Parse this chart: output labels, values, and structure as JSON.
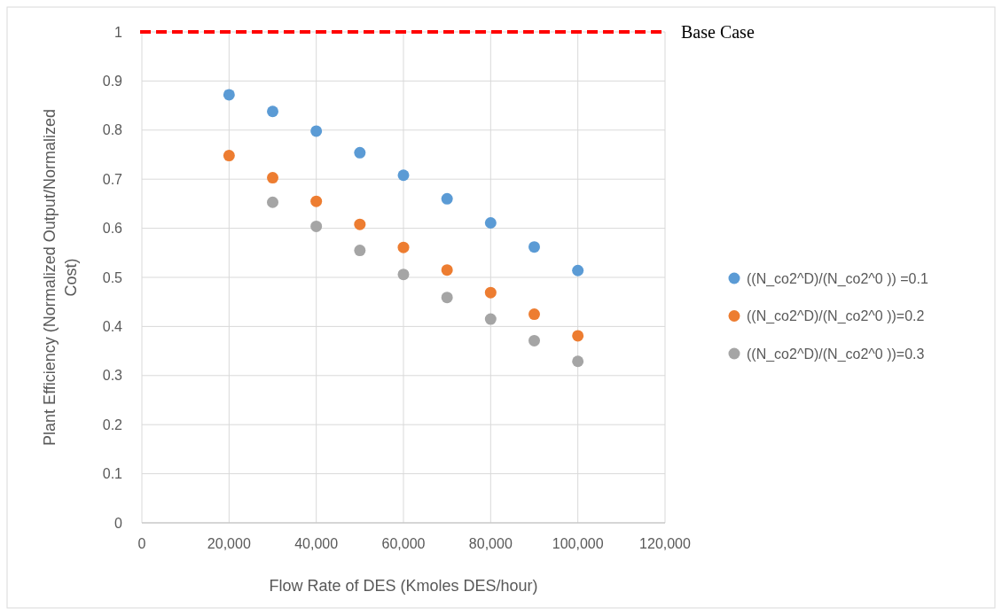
{
  "chart_data": {
    "type": "scatter",
    "xlabel": "Flow Rate of DES (Kmoles DES/hour)",
    "ylabel": "Plant Efficiency (Normalized Output/Normalized Cost)",
    "x": [
      20000,
      30000,
      40000,
      50000,
      60000,
      70000,
      80000,
      90000,
      100000
    ],
    "series": [
      {
        "name": "((N_co2^D)/(N_co2^0 )) =0.1",
        "color": "#5b9bd5",
        "values": [
          0.872,
          0.838,
          0.798,
          0.754,
          0.708,
          0.66,
          0.611,
          0.562,
          0.514
        ]
      },
      {
        "name": "((N_co2^D)/(N_co2^0 ))=0.2",
        "color": "#ed7d31",
        "values": [
          0.748,
          0.703,
          0.655,
          0.608,
          0.561,
          0.515,
          0.469,
          0.425,
          0.381
        ]
      },
      {
        "name": "((N_co2^D)/(N_co2^0 ))=0.3",
        "color": "#a5a5a5",
        "values": [
          null,
          0.653,
          0.604,
          0.555,
          0.506,
          0.459,
          0.415,
          0.371,
          0.329
        ]
      }
    ],
    "xlim": [
      0,
      120000
    ],
    "xticks": [
      0,
      {
        "value": 20000,
        "label": "20,000"
      },
      {
        "value": 40000,
        "label": "40,000"
      },
      {
        "value": 60000,
        "label": "60,000"
      },
      {
        "value": 80000,
        "label": "80,000"
      },
      {
        "value": 100000,
        "label": "100,000"
      },
      {
        "value": 120000,
        "label": "120,000"
      }
    ],
    "ylim": [
      0,
      1
    ],
    "yticks": [
      0,
      0.1,
      0.2,
      0.3,
      0.4,
      0.5,
      0.6,
      0.7,
      0.8,
      0.9,
      1
    ],
    "ref_lines": [
      {
        "axis": "y",
        "value": 1,
        "label": "Base Case",
        "color": "#ff0000",
        "line_style": "dashed"
      }
    ],
    "grid": true,
    "legend": "right",
    "marker": "circle"
  }
}
